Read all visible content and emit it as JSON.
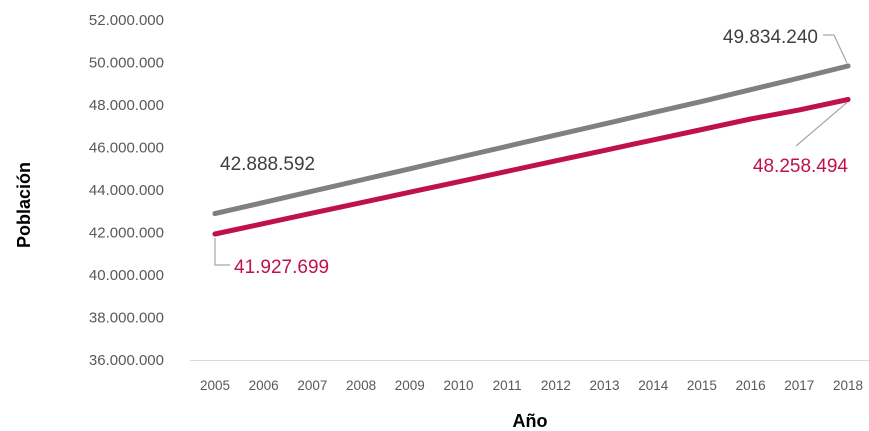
{
  "chart_data": {
    "type": "line",
    "title": "",
    "xlabel": "Año",
    "ylabel": "Población",
    "x": [
      2005,
      2006,
      2007,
      2008,
      2009,
      2010,
      2011,
      2012,
      2013,
      2014,
      2015,
      2016,
      2017,
      2018
    ],
    "ylim": [
      36000000,
      52000000
    ],
    "yticks": [
      36000000,
      38000000,
      40000000,
      42000000,
      44000000,
      46000000,
      48000000,
      50000000,
      52000000
    ],
    "ytick_labels": [
      "36.000.000",
      "38.000.000",
      "40.000.000",
      "42.000.000",
      "44.000.000",
      "46.000.000",
      "48.000.000",
      "50.000.000",
      "52.000.000"
    ],
    "grid": false,
    "legend": "none",
    "series": [
      {
        "color": "#808080",
        "values": [
          42888592,
          43416000,
          43944000,
          44472000,
          45000000,
          45528000,
          46056000,
          46584000,
          47112000,
          47640000,
          48168000,
          48720000,
          49270000,
          49834240
        ],
        "labels": {
          "start": "42.888.592",
          "end": "49.834.240"
        }
      },
      {
        "color": "#C0104F",
        "values": [
          41927699,
          42420000,
          42912000,
          43404000,
          43896000,
          44388000,
          44880000,
          45372000,
          45864000,
          46356000,
          46848000,
          47340000,
          47770000,
          48258494
        ],
        "labels": {
          "start": "41.927.699",
          "end": "48.258.494"
        }
      }
    ]
  }
}
